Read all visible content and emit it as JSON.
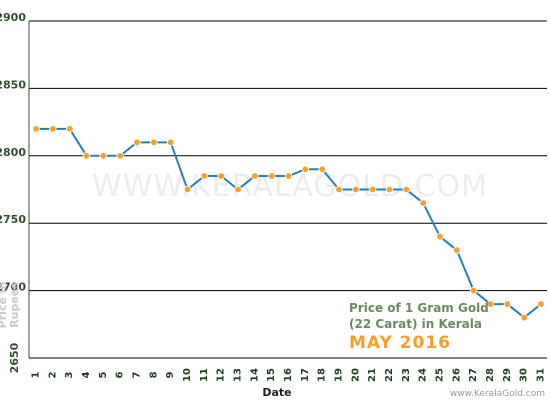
{
  "chart_data": {
    "type": "line",
    "xlabel": "Date",
    "ylabel": "Price in Rupees",
    "x": [
      1,
      2,
      3,
      4,
      5,
      6,
      7,
      8,
      9,
      10,
      11,
      12,
      13,
      14,
      15,
      16,
      17,
      18,
      19,
      20,
      21,
      22,
      23,
      24,
      25,
      26,
      27,
      28,
      29,
      30,
      31
    ],
    "series": [
      {
        "values": [
          2820,
          2820,
          2820,
          2800,
          2800,
          2800,
          2810,
          2810,
          2810,
          2775,
          2785,
          2785,
          2775,
          2785,
          2785,
          2785,
          2790,
          2790,
          2775,
          2775,
          2775,
          2775,
          2775,
          2765,
          2740,
          2730,
          2700,
          2690,
          2690,
          2680,
          2690
        ]
      }
    ],
    "ylim": [
      2650,
      2900
    ],
    "yticks": [
      2650,
      2700,
      2750,
      2800,
      2850,
      2900
    ],
    "grid": "horizontal",
    "annotation": {
      "line1": "Price of 1 Gram Gold",
      "line2": "(22 Carat) in Kerala",
      "line3": "MAY 2016"
    },
    "watermark": "WWW.KERALAGOLD.COM",
    "footer": "www.KeralaGold.com",
    "colors": {
      "line": "#2a7fb0",
      "marker": "#f5a02a",
      "annotation_text": "#6b8a5e",
      "annotation_highlight": "#f5a02a",
      "ytick_text": "#2f4f2f"
    }
  }
}
